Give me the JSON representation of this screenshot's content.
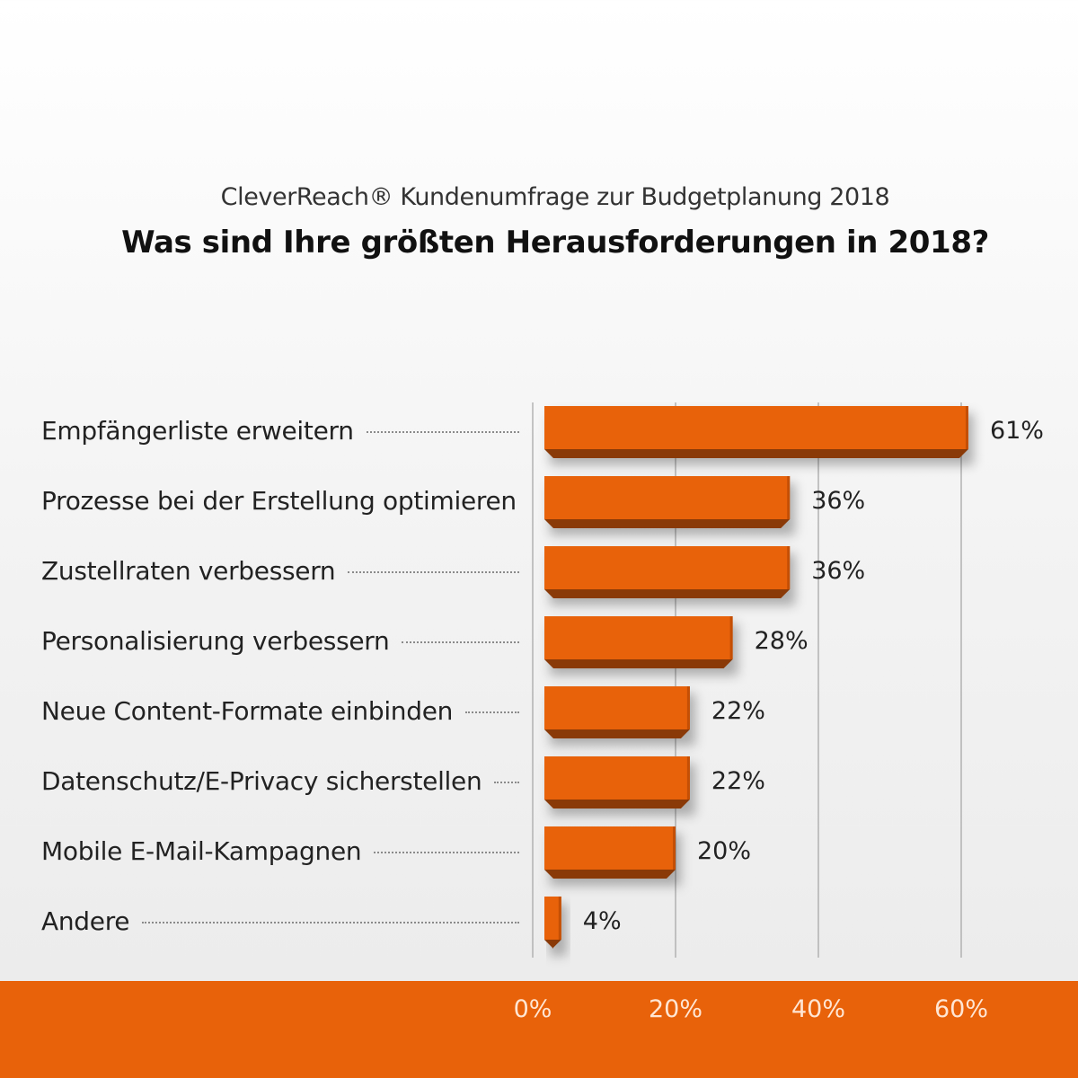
{
  "chart_data": {
    "type": "bar",
    "orientation": "horizontal",
    "subtitle": "CleverReach® Kundenumfrage zur Budgetplanung 2018",
    "title": "Was sind Ihre größten Herausforderungen in 2018?",
    "categories": [
      "Empfängerliste erweitern",
      "Prozesse bei der Erstellung optimieren",
      "Zustellraten verbessern",
      "Personalisierung verbessern",
      "Neue Content-Formate einbinden",
      "Datenschutz/E-Privacy sicherstellen",
      "Mobile E-Mail-Kampagnen",
      "Andere"
    ],
    "values": [
      61,
      36,
      36,
      28,
      22,
      22,
      20,
      4
    ],
    "value_labels": [
      "61%",
      "36%",
      "36%",
      "28%",
      "22%",
      "22%",
      "20%",
      "4%"
    ],
    "xlim": [
      0,
      60
    ],
    "x_ticks": [
      0,
      20,
      40,
      60
    ],
    "x_tick_labels": [
      "0%",
      "20%",
      "40%",
      "60%"
    ],
    "grid": true,
    "bar_color": "#e8620a",
    "bar_shade_color": "#8a3a08",
    "footer_color": "#e8620a"
  }
}
